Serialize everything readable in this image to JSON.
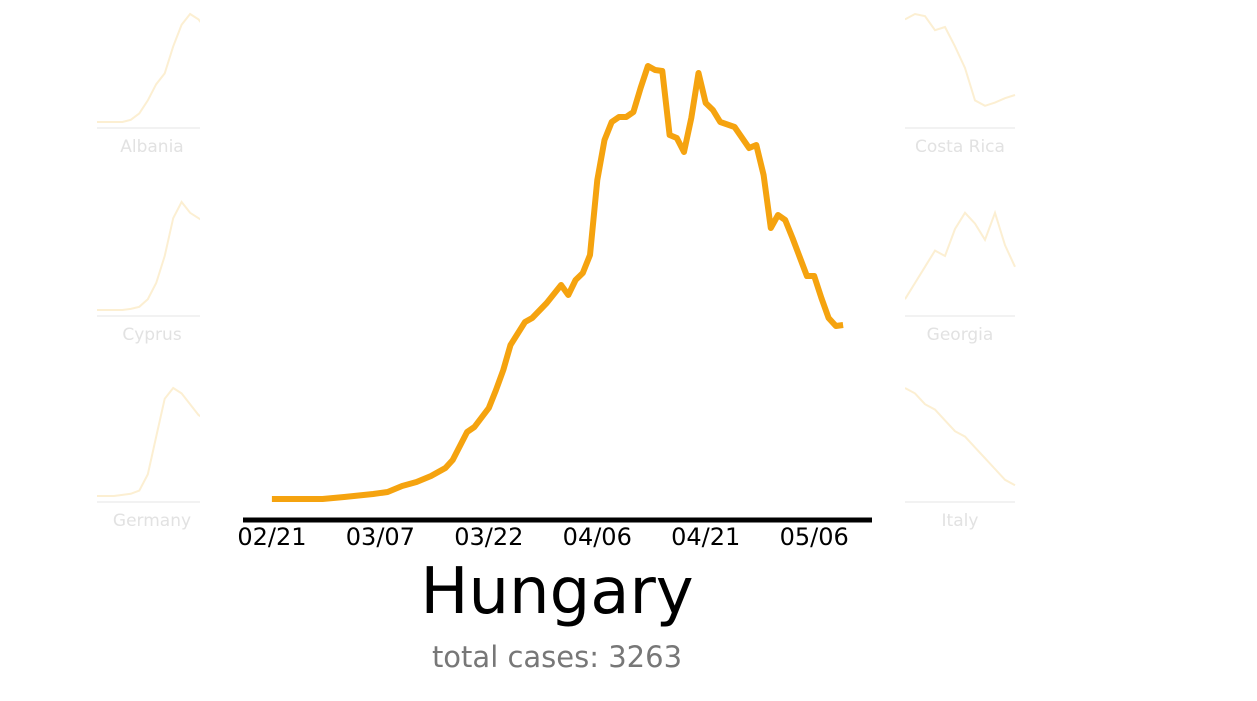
{
  "chart_data": [
    {
      "type": "line",
      "title": "Hungary",
      "subtitle": "total cases: 3263",
      "color": "#f5a30f",
      "x": [
        "02/21",
        "02/28",
        "03/02",
        "03/06",
        "03/08",
        "03/10",
        "03/12",
        "03/14",
        "03/16",
        "03/17",
        "03/19",
        "03/20",
        "03/22",
        "03/23",
        "03/24",
        "03/25",
        "03/27",
        "03/28",
        "03/30",
        "04/01",
        "04/02",
        "04/03",
        "04/04",
        "04/05",
        "04/06",
        "04/07",
        "04/08",
        "04/09",
        "04/10",
        "04/11",
        "04/12",
        "04/13",
        "04/14",
        "04/15",
        "04/16",
        "04/17",
        "04/18",
        "04/19",
        "04/20",
        "04/21",
        "04/22",
        "04/23",
        "04/25",
        "04/27",
        "04/28",
        "04/29",
        "04/30",
        "05/01",
        "05/02",
        "05/03",
        "05/04",
        "05/05",
        "05/06",
        "05/07",
        "05/08",
        "05/09",
        "05/10"
      ],
      "values": [
        0,
        0,
        2,
        5,
        7,
        13,
        17,
        23,
        31,
        39,
        67,
        72,
        91,
        109,
        129,
        154,
        177,
        181,
        196,
        214,
        204,
        219,
        226,
        244,
        319,
        359,
        377,
        382,
        382,
        387,
        411,
        433,
        429,
        428,
        364,
        361,
        347,
        381,
        426,
        396,
        389,
        377,
        372,
        351,
        354,
        324,
        271,
        284,
        279,
        261,
        242,
        223,
        223,
        201,
        181,
        173,
        174
      ],
      "xlim": [
        "02/17",
        "05/14"
      ],
      "xticks": [
        "02/21",
        "03/07",
        "03/22",
        "04/06",
        "04/21",
        "05/06"
      ],
      "ylim": [
        0,
        440
      ]
    },
    {
      "type": "line",
      "title": "Albania",
      "color": "#fcefd2",
      "ylim": [
        0,
        100
      ],
      "values": [
        0,
        0,
        0,
        0,
        2,
        8,
        20,
        35,
        45,
        70,
        90,
        100,
        95,
        85
      ]
    },
    {
      "type": "line",
      "title": "Cyprus",
      "color": "#fcefd2",
      "ylim": [
        0,
        100
      ],
      "values": [
        0,
        0,
        0,
        0,
        1,
        3,
        10,
        25,
        50,
        85,
        100,
        90,
        85,
        80
      ]
    },
    {
      "type": "line",
      "title": "Germany",
      "color": "#fcefd2",
      "ylim": [
        0,
        100
      ],
      "values": [
        0,
        0,
        0,
        1,
        2,
        5,
        20,
        55,
        90,
        100,
        95,
        85,
        75,
        70
      ]
    },
    {
      "type": "line",
      "title": "Costa Rica",
      "color": "#fcefd2",
      "ylim": [
        0,
        100
      ],
      "values": [
        95,
        100,
        98,
        85,
        88,
        70,
        50,
        20,
        15,
        18,
        22,
        25
      ]
    },
    {
      "type": "line",
      "title": "Georgia",
      "color": "#fcefd2",
      "ylim": [
        0,
        100
      ],
      "values": [
        10,
        25,
        40,
        55,
        50,
        75,
        90,
        80,
        65,
        90,
        60,
        40
      ]
    },
    {
      "type": "line",
      "title": "Italy",
      "color": "#fcefd2",
      "ylim": [
        0,
        100
      ],
      "values": [
        100,
        95,
        85,
        80,
        70,
        60,
        55,
        45,
        35,
        25,
        15,
        10
      ]
    }
  ]
}
